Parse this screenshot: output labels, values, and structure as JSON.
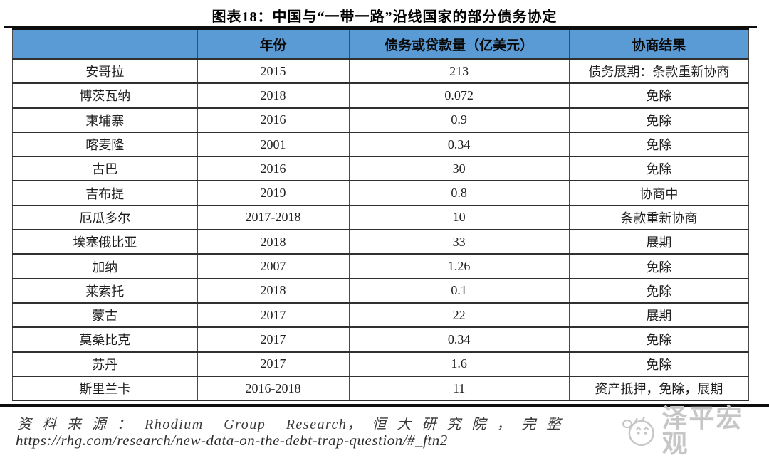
{
  "title": "图表18：中国与“一带一路”沿线国家的部分债务协定",
  "table": {
    "columns": [
      "",
      "年份",
      "债务或贷款量（亿美元）",
      "协商结果"
    ],
    "rows": [
      {
        "country": "安哥拉",
        "year": "2015",
        "amount": "213",
        "outcome": "债务展期：条款重新协商"
      },
      {
        "country": "博茨瓦纳",
        "year": "2018",
        "amount": "0.072",
        "outcome": "免除"
      },
      {
        "country": "柬埔寨",
        "year": "2016",
        "amount": "0.9",
        "outcome": "免除"
      },
      {
        "country": "喀麦隆",
        "year": "2001",
        "amount": "0.34",
        "outcome": "免除"
      },
      {
        "country": "古巴",
        "year": "2016",
        "amount": "30",
        "outcome": "免除"
      },
      {
        "country": "吉布提",
        "year": "2019",
        "amount": "0.8",
        "outcome": "协商中"
      },
      {
        "country": "厄瓜多尔",
        "year": "2017-2018",
        "amount": "10",
        "outcome": "条款重新协商"
      },
      {
        "country": "埃塞俄比亚",
        "year": "2018",
        "amount": "33",
        "outcome": "展期"
      },
      {
        "country": "加纳",
        "year": "2007",
        "amount": "1.26",
        "outcome": "免除"
      },
      {
        "country": "莱索托",
        "year": "2018",
        "amount": "0.1",
        "outcome": "免除"
      },
      {
        "country": "蒙古",
        "year": "2017",
        "amount": "22",
        "outcome": "展期"
      },
      {
        "country": "莫桑比克",
        "year": "2017",
        "amount": "0.34",
        "outcome": "免除"
      },
      {
        "country": "苏丹",
        "year": "2017",
        "amount": "1.6",
        "outcome": "免除"
      },
      {
        "country": "斯里兰卡",
        "year": "2016-2018",
        "amount": "11",
        "outcome": "资产抵押，免除，展期"
      }
    ]
  },
  "footer": {
    "source_prefix": "资料来源：",
    "source_latin": "Rhodium Group Research",
    "source_middle": "，恒大研究院，完整",
    "watermark": "泽平宏观",
    "url": "https://rhg.com/research/new-data-on-the-debt-trap-question/#_ftn2"
  },
  "colors": {
    "header_bg": "#5b9bd5",
    "rule_black": "#0e0e0e",
    "watermark_gray": "#c6c6c6"
  }
}
